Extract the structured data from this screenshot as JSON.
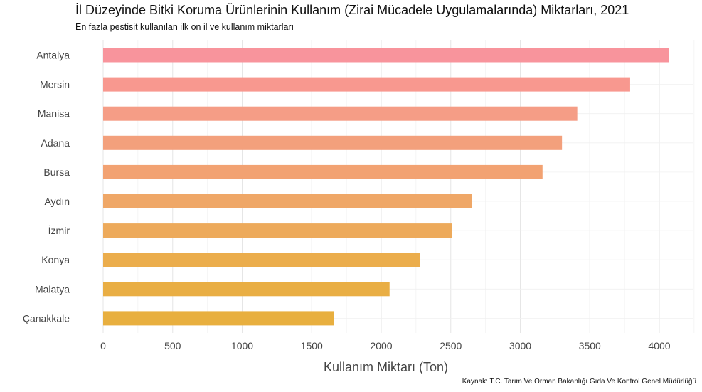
{
  "chart_data": {
    "type": "bar",
    "orientation": "horizontal",
    "title": "İl Düzeyinde Bitki Koruma Ürünlerinin Kullanım (Zirai Mücadele Uygulamalarında) Miktarları, 2021",
    "subtitle": "En fazla pestisit kullanılan ilk on il ve kullanım miktarları",
    "xlabel": "Kullanım Miktarı (Ton)",
    "ylabel": "",
    "caption": "Kaynak: T.C. Tarım Ve Orman Bakanlığı Gıda Ve Kontrol Genel Müdürlüğü",
    "categories": [
      "Antalya",
      "Mersin",
      "Manisa",
      "Adana",
      "Bursa",
      "Aydın",
      "İzmir",
      "Konya",
      "Malatya",
      "Çanakkale"
    ],
    "values": [
      4070,
      3790,
      3410,
      3300,
      3160,
      2650,
      2510,
      2280,
      2060,
      1660
    ],
    "colors": [
      "#f8949c",
      "#f8988f",
      "#f59d86",
      "#f3a07c",
      "#f2a272",
      "#efa767",
      "#edaa5b",
      "#ebad4c",
      "#e9ae44",
      "#e8af3f"
    ],
    "xlim": [
      0,
      4250
    ],
    "xticks": [
      "0",
      "500",
      "1000",
      "1500",
      "2000",
      "2500",
      "3000",
      "3500",
      "4000"
    ],
    "xtick_values": [
      0,
      500,
      1000,
      1500,
      2000,
      2500,
      3000,
      3500,
      4000
    ],
    "grid": true,
    "legend": "none"
  }
}
